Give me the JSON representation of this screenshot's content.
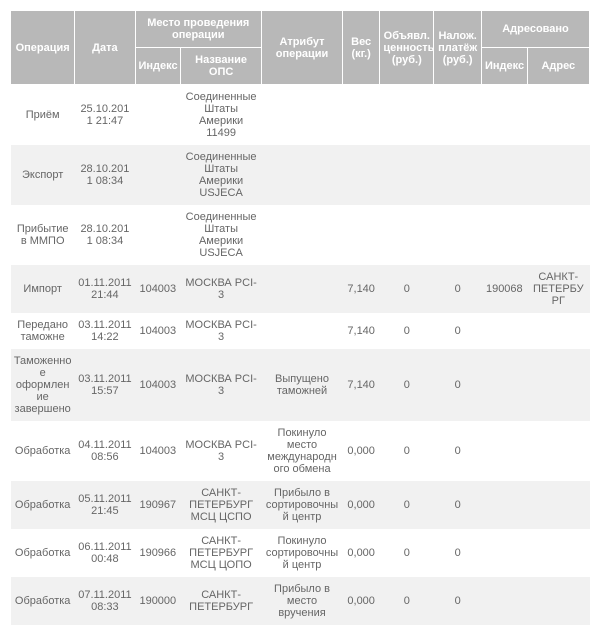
{
  "headers": {
    "operation": "Операция",
    "date": "Дата",
    "place_group": "Место проведения операции",
    "index": "Индекс",
    "ops_name": "Название ОПС",
    "attribute": "Атрибут операции",
    "weight": "Вес (кг.)",
    "declared_value": "Объявл. ценность (руб.)",
    "cod": "Налож. платёж (руб.)",
    "addressed_group": "Адресовано",
    "addr_index": "Индекс",
    "addr_addr": "Адрес"
  },
  "rows": [
    {
      "op": "Приём",
      "date": "25.10.2011 21:47",
      "idx": "",
      "ops": "Соединенные Штаты Америки 11499",
      "attr": "",
      "wt": "",
      "val": "",
      "cod": "",
      "aidx": "",
      "addr": ""
    },
    {
      "op": "Экспорт",
      "date": "28.10.2011 08:34",
      "idx": "",
      "ops": "Соединенные Штаты Америки USJECA",
      "attr": "",
      "wt": "",
      "val": "",
      "cod": "",
      "aidx": "",
      "addr": ""
    },
    {
      "op": "Прибытие в ММПО",
      "date": "28.10.2011 08:34",
      "idx": "",
      "ops": "Соединенные Штаты Америки USJECA",
      "attr": "",
      "wt": "",
      "val": "",
      "cod": "",
      "aidx": "",
      "addr": ""
    },
    {
      "op": "Импорт",
      "date": "01.11.2011 21:44",
      "idx": "104003",
      "ops": "МОСКВА PCI-3",
      "attr": "",
      "wt": "7,140",
      "val": "0",
      "cod": "0",
      "aidx": "190068",
      "addr": "САНКТ-ПЕТЕРБУРГ"
    },
    {
      "op": "Передано таможне",
      "date": "03.11.2011 14:22",
      "idx": "104003",
      "ops": "МОСКВА PCI-3",
      "attr": "",
      "wt": "7,140",
      "val": "0",
      "cod": "0",
      "aidx": "",
      "addr": ""
    },
    {
      "op": "Таможенное оформление завершено",
      "date": "03.11.2011 15:57",
      "idx": "104003",
      "ops": "МОСКВА PCI-3",
      "attr": "Выпущено таможней",
      "wt": "7,140",
      "val": "0",
      "cod": "0",
      "aidx": "",
      "addr": ""
    },
    {
      "op": "Обработка",
      "date": "04.11.2011 08:56",
      "idx": "104003",
      "ops": "МОСКВА PCI-3",
      "attr": "Покинуло место международного обмена",
      "wt": "0,000",
      "val": "0",
      "cod": "0",
      "aidx": "",
      "addr": ""
    },
    {
      "op": "Обработка",
      "date": "05.11.2011 21:45",
      "idx": "190967",
      "ops": "САНКТ-ПЕТЕРБУРГ МСЦ ЦСПО",
      "attr": "Прибыло в сортировочный центр",
      "wt": "0,000",
      "val": "0",
      "cod": "0",
      "aidx": "",
      "addr": ""
    },
    {
      "op": "Обработка",
      "date": "06.11.2011 00:48",
      "idx": "190966",
      "ops": "САНКТ-ПЕТЕРБУРГ МСЦ ЦОПО",
      "attr": "Покинуло сортировочный центр",
      "wt": "0,000",
      "val": "0",
      "cod": "0",
      "aidx": "",
      "addr": ""
    },
    {
      "op": "Обработка",
      "date": "07.11.2011 08:33",
      "idx": "190000",
      "ops": "САНКТ-ПЕТЕРБУРГ",
      "attr": "Прибыло в место вручения",
      "wt": "0,000",
      "val": "0",
      "cod": "0",
      "aidx": "",
      "addr": ""
    }
  ]
}
